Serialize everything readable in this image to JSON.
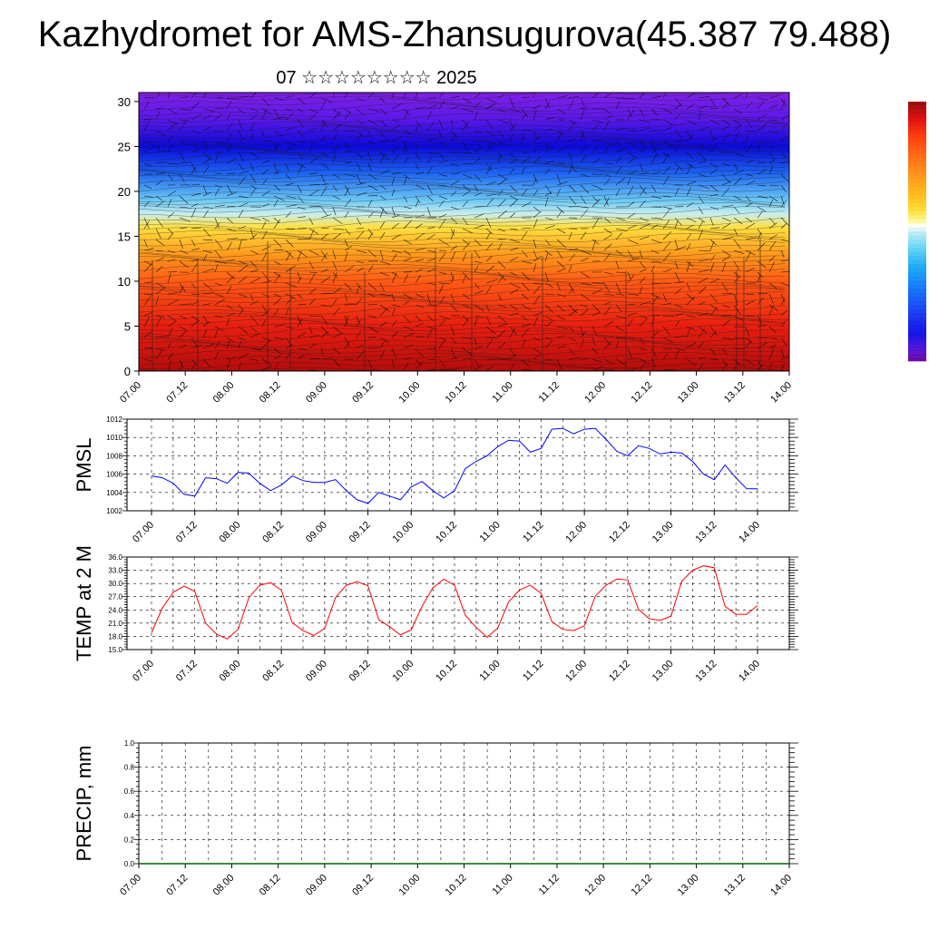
{
  "header": {
    "title": "Kazhydromet for AMS-Zhansugurova(45.387 79.488)",
    "subtitle": "07 ☆☆☆☆☆☆☆☆ 2025"
  },
  "colorbar": {
    "colors": [
      "#6a0aa8",
      "#5416d8",
      "#1414e6",
      "#1c3cf4",
      "#1478fa",
      "#1eaaf8",
      "#6ad6f6",
      "#c4eef4",
      "#fff8a0",
      "#ffe03c",
      "#ffbe1e",
      "#ff961a",
      "#ff6a14",
      "#ff3a10",
      "#e01010",
      "#a00a0a",
      "#ffffff"
    ]
  },
  "chart_data": [
    {
      "type": "heatmap",
      "title": "",
      "ylim": [
        0,
        30
      ],
      "yticks": [
        "0",
        "5",
        "10",
        "15",
        "20",
        "25",
        "30"
      ],
      "xticks": [
        "07.00",
        "07.12",
        "08.00",
        "08.12",
        "09.00",
        "09.12",
        "10.00",
        "10.12",
        "11.00",
        "11.12",
        "12.00",
        "12.12",
        "13.00",
        "13.12",
        "14.00"
      ],
      "levels": [
        {
          "y": 0,
          "color": "#b40c0c"
        },
        {
          "y": 5,
          "color": "#e81e10"
        },
        {
          "y": 10,
          "color": "#ff5a14"
        },
        {
          "y": 13,
          "color": "#ff9a1c"
        },
        {
          "y": 16,
          "color": "#ffe040"
        },
        {
          "y": 17.5,
          "color": "#c8eef0"
        },
        {
          "y": 19,
          "color": "#6cc8f4"
        },
        {
          "y": 22,
          "color": "#1e64f0"
        },
        {
          "y": 25,
          "color": "#0a0ad8"
        },
        {
          "y": 28,
          "color": "#5a18e8"
        },
        {
          "y": 31,
          "color": "#8020e6"
        }
      ]
    },
    {
      "type": "line",
      "ylabel": "PMSL",
      "ylim": [
        1002,
        1012
      ],
      "yticks": [
        "1002",
        "1004",
        "1006",
        "1008",
        "1010",
        "1012"
      ],
      "xticks": [
        "07.00",
        "07.12",
        "08.00",
        "08.12",
        "09.00",
        "09.12",
        "10.00",
        "10.12",
        "11.00",
        "11.12",
        "12.00",
        "12.12",
        "13.00",
        "13.12",
        "14.00"
      ],
      "color": "#0000ff",
      "values": [
        1005.8,
        1005.6,
        1005.0,
        1003.8,
        1003.6,
        1005.6,
        1005.5,
        1005.0,
        1006.2,
        1006.1,
        1005.0,
        1004.2,
        1004.8,
        1005.8,
        1005.3,
        1005.1,
        1005.1,
        1005.4,
        1004.2,
        1003.2,
        1002.8,
        1004.0,
        1003.6,
        1003.2,
        1004.6,
        1005.2,
        1004.2,
        1003.4,
        1004.2,
        1006.6,
        1007.4,
        1008.0,
        1009.0,
        1009.7,
        1009.6,
        1008.4,
        1008.8,
        1010.9,
        1011.0,
        1010.4,
        1010.9,
        1011.0,
        1009.8,
        1008.5,
        1008.0,
        1009.1,
        1008.8,
        1008.2,
        1008.4,
        1008.3,
        1007.4,
        1006.0,
        1005.4,
        1007.0,
        1005.6,
        1004.4,
        1004.4
      ]
    },
    {
      "type": "line",
      "ylabel": "TEMP at 2 M",
      "ylim": [
        15,
        36
      ],
      "yticks": [
        "15.0",
        "18.0",
        "21.0",
        "24.0",
        "27.0",
        "30.0",
        "33.0",
        "36.0"
      ],
      "xticks": [
        "07.00",
        "07.12",
        "08.00",
        "08.12",
        "09.00",
        "09.12",
        "10.00",
        "10.12",
        "11.00",
        "11.12",
        "12.00",
        "12.12",
        "13.00",
        "13.12",
        "14.00"
      ],
      "color": "#ff0000",
      "values": [
        18.8,
        24.4,
        28.0,
        29.4,
        28.2,
        21.0,
        18.5,
        17.4,
        19.6,
        26.8,
        29.6,
        30.2,
        28.5,
        21.1,
        19.3,
        18.2,
        19.8,
        26.8,
        29.6,
        30.4,
        29.5,
        21.8,
        20.2,
        18.3,
        19.5,
        24.8,
        29.0,
        31.0,
        29.6,
        22.8,
        20.0,
        17.8,
        19.9,
        25.8,
        28.5,
        29.6,
        27.8,
        21.3,
        19.6,
        19.3,
        20.4,
        27.1,
        29.6,
        31.0,
        30.8,
        24.1,
        22.0,
        21.6,
        22.6,
        30.5,
        33.0,
        34.0,
        33.6,
        24.8,
        23.0,
        23.0,
        25.0
      ]
    },
    {
      "type": "line",
      "ylabel": "PRECIP, mm",
      "ylim": [
        0,
        1
      ],
      "yticks": [
        "0.0",
        "0.2",
        "0.4",
        "0.6",
        "0.8",
        "1.0"
      ],
      "xticks": [
        "07.00",
        "07.12",
        "08.00",
        "08.12",
        "09.00",
        "09.12",
        "10.00",
        "10.12",
        "11.00",
        "11.12",
        "12.00",
        "12.12",
        "13.00",
        "13.12",
        "14.00"
      ],
      "color": "#006400",
      "values": [
        0,
        0,
        0,
        0,
        0,
        0,
        0,
        0,
        0,
        0,
        0,
        0,
        0,
        0,
        0,
        0,
        0,
        0,
        0,
        0,
        0,
        0,
        0,
        0,
        0,
        0,
        0,
        0,
        0,
        0,
        0,
        0,
        0,
        0,
        0,
        0,
        0,
        0,
        0,
        0,
        0,
        0,
        0,
        0,
        0,
        0,
        0,
        0,
        0,
        0,
        0,
        0,
        0,
        0,
        0,
        0,
        0
      ]
    }
  ]
}
